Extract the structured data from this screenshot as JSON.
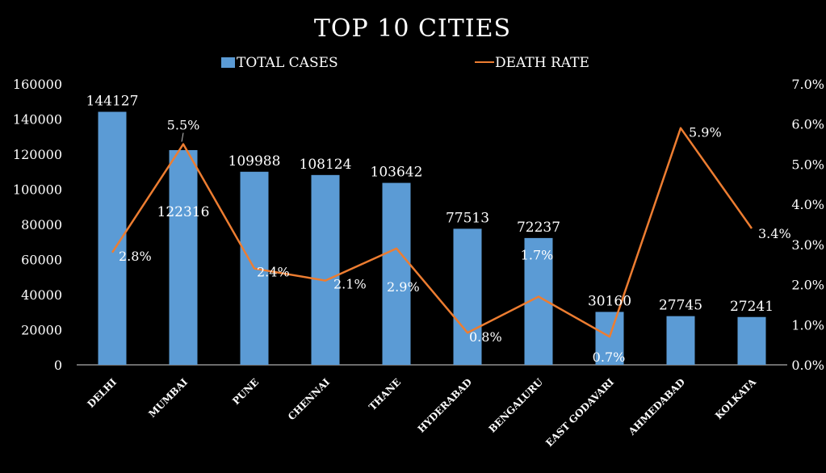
{
  "chart_data": {
    "type": "bar+line",
    "title": "TOP 10 CITIES",
    "categories": [
      "DELHI",
      "MUMBAI",
      "PUNE",
      "CHENNAI",
      "THANE",
      "HYDERABAD",
      "BENGALURU",
      "EAST GODAVARI",
      "AHMEDABAD",
      "KOLKATA"
    ],
    "series": [
      {
        "name": "TOTAL CASES",
        "type": "bar",
        "axis": "left",
        "color": "#5b9bd5",
        "values": [
          144127,
          122316,
          109988,
          108124,
          103642,
          77513,
          72237,
          30160,
          27745,
          27241
        ],
        "labels": [
          "144127",
          "122316",
          "109988",
          "108124",
          "103642",
          "77513",
          "72237",
          "30160",
          "27745",
          "27241"
        ]
      },
      {
        "name": "DEATH RATE",
        "type": "line",
        "axis": "right",
        "color": "#ed7d31",
        "values": [
          2.8,
          5.5,
          2.4,
          2.1,
          2.9,
          0.8,
          1.7,
          0.7,
          5.9,
          3.4
        ],
        "labels": [
          "2.8%",
          "5.5%",
          "2.4%",
          "2.1%",
          "2.9%",
          "0.8%",
          "1.7%",
          "0.7%",
          "5.9%",
          "3.4%"
        ]
      }
    ],
    "y_left": {
      "min": 0,
      "max": 160000,
      "ticks": [
        "0",
        "20000",
        "40000",
        "60000",
        "80000",
        "100000",
        "120000",
        "140000",
        "160000"
      ]
    },
    "y_right": {
      "min": 0,
      "max": 7,
      "ticks": [
        "0.0%",
        "1.0%",
        "2.0%",
        "3.0%",
        "4.0%",
        "5.0%",
        "6.0%",
        "7.0%"
      ]
    },
    "legend": [
      {
        "label": "TOTAL CASES",
        "kind": "bar"
      },
      {
        "label": "DEATH RATE",
        "kind": "line"
      }
    ],
    "legend_position": "top",
    "grid": false,
    "background": "#000000",
    "text_color": "#ffffff"
  }
}
